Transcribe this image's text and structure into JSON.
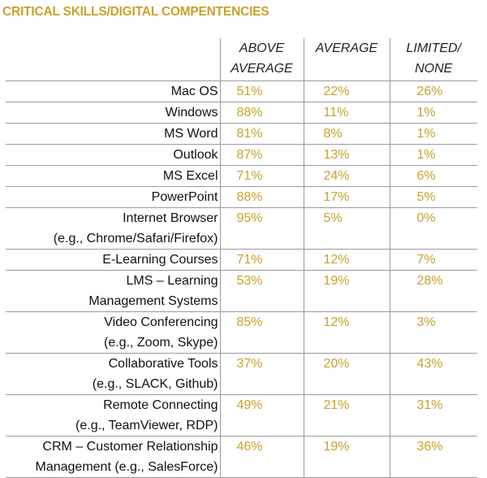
{
  "title": "CRITICAL SKILLS/DIGITAL COMPENTENCIES",
  "headers": [
    {
      "line1": "ABOVE",
      "line2": "AVERAGE"
    },
    {
      "line1": "AVERAGE",
      "line2": ""
    },
    {
      "line1": "LIMITED/",
      "line2": "NONE"
    }
  ],
  "rows": [
    {
      "label1": "Mac OS",
      "label2": "",
      "above": "51%",
      "average": "22%",
      "limited": "26%"
    },
    {
      "label1": "Windows",
      "label2": "",
      "above": "88%",
      "average": "11%",
      "limited": "1%"
    },
    {
      "label1": "MS Word",
      "label2": "",
      "above": "81%",
      "average": "8%",
      "limited": "1%"
    },
    {
      "label1": "Outlook",
      "label2": "",
      "above": "87%",
      "average": "13%",
      "limited": "1%"
    },
    {
      "label1": "MS Excel",
      "label2": "",
      "above": "71%",
      "average": "24%",
      "limited": "6%"
    },
    {
      "label1": "PowerPoint",
      "label2": "",
      "above": "88%",
      "average": "17%",
      "limited": "5%"
    },
    {
      "label1": "Internet Browser",
      "label2": "(e.g., Chrome/Safari/Firefox)",
      "above": "95%",
      "average": "5%",
      "limited": "0%"
    },
    {
      "label1": "E-Learning Courses",
      "label2": "",
      "above": "71%",
      "average": "12%",
      "limited": "7%"
    },
    {
      "label1": "LMS – Learning",
      "label2": "Management Systems",
      "above": "53%",
      "average": "19%",
      "limited": "28%"
    },
    {
      "label1": "Video Conferencing",
      "label2": "(e.g., Zoom, Skype)",
      "above": "85%",
      "average": "12%",
      "limited": "3%"
    },
    {
      "label1": "Collaborative Tools",
      "label2": "(e.g., SLACK, Github)",
      "above": "37%",
      "average": "20%",
      "limited": "43%"
    },
    {
      "label1": "Remote Connecting",
      "label2": "(e.g., TeamViewer, RDP)",
      "above": "49%",
      "average": "21%",
      "limited": "31%"
    },
    {
      "label1": "CRM – Customer Relationship",
      "label2": "Management (e.g., SalesForce)",
      "above": "46%",
      "average": "19%",
      "limited": "36%"
    }
  ]
}
